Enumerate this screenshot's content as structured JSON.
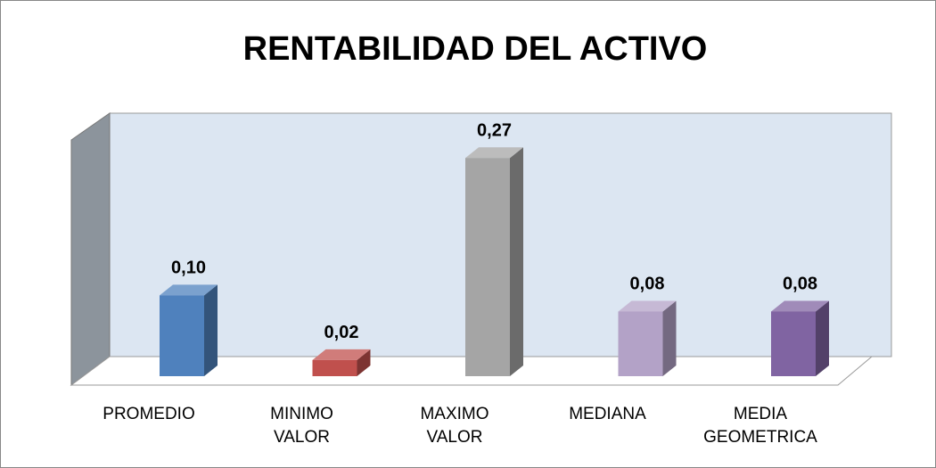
{
  "chart_data": {
    "type": "bar3d",
    "title": "RENTABILIDAD DEL ACTIVO",
    "categories": [
      "PROMEDIO",
      "MINIMO\nVALOR",
      "MAXIMO\nVALOR",
      "MEDIANA",
      "MEDIA\nGEOMETRICA"
    ],
    "values": [
      0.1,
      0.02,
      0.27,
      0.08,
      0.08
    ],
    "value_labels": [
      "0,10",
      "0,02",
      "0,27",
      "0,08",
      "0,08"
    ],
    "colors": [
      "#4f81bd",
      "#c0504d",
      "#a5a5a5",
      "#b3a2c7",
      "#8064a2"
    ],
    "ylim": [
      0,
      0.3
    ]
  }
}
